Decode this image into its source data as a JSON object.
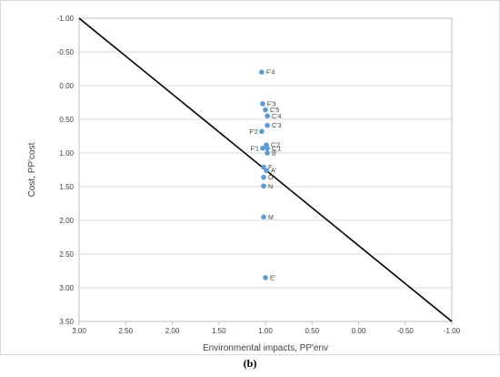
{
  "caption": "(b)",
  "chart_data": {
    "type": "scatter",
    "xlabel": "Environmental impacts, PP'env",
    "ylabel": "Cost, PP'cost",
    "xlim": [
      3.0,
      -1.0
    ],
    "ylim": [
      3.5,
      -1.0
    ],
    "x_axis_reversed": true,
    "y_axis_reversed": true,
    "x_ticks": [
      "3.00",
      "2.50",
      "2.00",
      "1.50",
      "1.00",
      "0.50",
      "0.00",
      "-0.50",
      "-1.00"
    ],
    "y_ticks": [
      "-1.00",
      "-0.50",
      "0.00",
      "0.50",
      "1.00",
      "1.50",
      "2.00",
      "2.50",
      "3.00",
      "3.50"
    ],
    "grid": "horizontal",
    "marker_color": "#5b9bd5",
    "reference_line": {
      "x": [
        3.0,
        -1.0
      ],
      "y": [
        -1.0,
        3.5
      ]
    },
    "points": [
      {
        "label": "F'4",
        "x": 1.04,
        "y": -0.2
      },
      {
        "label": "F'3",
        "x": 1.03,
        "y": 0.27
      },
      {
        "label": "C'5",
        "x": 1.0,
        "y": 0.36
      },
      {
        "label": "C'4",
        "x": 0.98,
        "y": 0.45
      },
      {
        "label": "C'3",
        "x": 0.98,
        "y": 0.59
      },
      {
        "label": "F'2",
        "x": 1.04,
        "y": 0.68
      },
      {
        "label": "C'2",
        "x": 0.99,
        "y": 0.88
      },
      {
        "label": "F'1",
        "x": 1.03,
        "y": 0.93
      },
      {
        "label": "C'1",
        "x": 0.98,
        "y": 0.93
      },
      {
        "label": "B'",
        "x": 0.98,
        "y": 1.0
      },
      {
        "label": "F",
        "x": 1.02,
        "y": 1.21
      },
      {
        "label": "A'",
        "x": 0.99,
        "y": 1.26
      },
      {
        "label": "O",
        "x": 1.02,
        "y": 1.36
      },
      {
        "label": "N",
        "x": 1.02,
        "y": 1.49
      },
      {
        "label": "M",
        "x": 1.02,
        "y": 1.95
      },
      {
        "label": "E'",
        "x": 1.0,
        "y": 2.85
      }
    ]
  }
}
